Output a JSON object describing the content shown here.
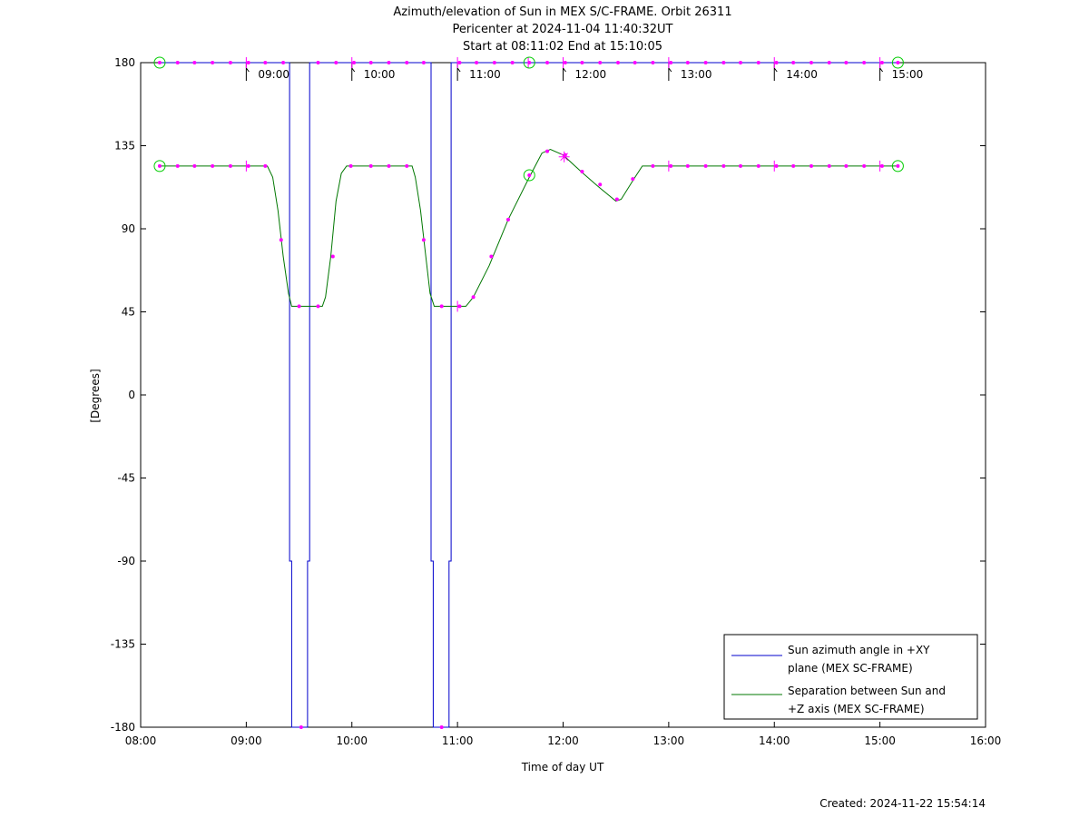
{
  "chart_data": {
    "type": "line",
    "title_lines": [
      "Azimuth/elevation of Sun in MEX S/C-FRAME.  Orbit 26311",
      "Pericenter at 2024-11-04 11:40:32UT",
      "Start at 08:11:02 End at 15:10:05"
    ],
    "xlabel": "Time of day UT",
    "ylabel": "[Degrees]",
    "xlim": [
      8.0,
      16.0
    ],
    "ylim": [
      -180,
      180
    ],
    "x_ticks": [
      {
        "v": 8,
        "label": "08:00"
      },
      {
        "v": 9,
        "label": "09:00"
      },
      {
        "v": 10,
        "label": "10:00"
      },
      {
        "v": 11,
        "label": "11:00"
      },
      {
        "v": 12,
        "label": "12:00"
      },
      {
        "v": 13,
        "label": "13:00"
      },
      {
        "v": 14,
        "label": "14:00"
      },
      {
        "v": 15,
        "label": "15:00"
      },
      {
        "v": 16,
        "label": "16:00"
      }
    ],
    "y_ticks": [
      {
        "v": 180,
        "label": "180"
      },
      {
        "v": 135,
        "label": "135"
      },
      {
        "v": 90,
        "label": "90"
      },
      {
        "v": 45,
        "label": "45"
      },
      {
        "v": 0,
        "label": "0"
      },
      {
        "v": -45,
        "label": "-45"
      },
      {
        "v": -90,
        "label": "-90"
      },
      {
        "v": -135,
        "label": "-135"
      },
      {
        "v": -180,
        "label": "-180"
      }
    ],
    "hour_markers": [
      {
        "v": 9,
        "label": "09:00"
      },
      {
        "v": 10,
        "label": "10:00"
      },
      {
        "v": 11,
        "label": "11:00"
      },
      {
        "v": 12,
        "label": "12:00"
      },
      {
        "v": 13,
        "label": "13:00"
      },
      {
        "v": 14,
        "label": "14:00"
      },
      {
        "v": 15,
        "label": "15:00"
      }
    ],
    "legend_position": "bottom-right",
    "series": [
      {
        "name": "Sun azimuth angle in +XY plane (MEX SC-FRAME)",
        "legend_lines": [
          "Sun azimuth angle in +XY",
          "plane (MEX SC-FRAME)"
        ],
        "color": "#0000cc",
        "points": [
          [
            8.18,
            180
          ],
          [
            9.41,
            180
          ],
          [
            9.41,
            -90
          ],
          [
            9.43,
            -90
          ],
          [
            9.43,
            -180
          ],
          [
            9.58,
            -180
          ],
          [
            9.58,
            -90
          ],
          [
            9.6,
            -90
          ],
          [
            9.6,
            180
          ],
          [
            10.75,
            180
          ],
          [
            10.75,
            -90
          ],
          [
            10.77,
            -90
          ],
          [
            10.77,
            -180
          ],
          [
            10.92,
            -180
          ],
          [
            10.92,
            -90
          ],
          [
            10.94,
            -90
          ],
          [
            10.94,
            180
          ],
          [
            15.17,
            180
          ]
        ]
      },
      {
        "name": "Separation between Sun and +Z axis (MEX SC-FRAME)",
        "legend_lines": [
          "Separation between Sun and",
          "+Z axis (MEX SC-FRAME)"
        ],
        "color": "#007700",
        "points": [
          [
            8.18,
            124
          ],
          [
            9.2,
            124
          ],
          [
            9.25,
            118
          ],
          [
            9.3,
            100
          ],
          [
            9.35,
            75
          ],
          [
            9.4,
            55
          ],
          [
            9.43,
            48
          ],
          [
            9.72,
            48
          ],
          [
            9.75,
            53
          ],
          [
            9.8,
            75
          ],
          [
            9.85,
            105
          ],
          [
            9.9,
            120
          ],
          [
            9.95,
            124
          ],
          [
            10.57,
            124
          ],
          [
            10.6,
            118
          ],
          [
            10.65,
            100
          ],
          [
            10.7,
            75
          ],
          [
            10.74,
            55
          ],
          [
            10.78,
            48
          ],
          [
            11.08,
            48
          ],
          [
            11.15,
            53
          ],
          [
            11.3,
            70
          ],
          [
            11.48,
            95
          ],
          [
            11.68,
            118
          ],
          [
            11.8,
            131
          ],
          [
            11.88,
            133
          ],
          [
            12.0,
            130
          ],
          [
            12.17,
            121
          ],
          [
            12.33,
            113
          ],
          [
            12.5,
            105
          ],
          [
            12.55,
            106
          ],
          [
            12.67,
            117
          ],
          [
            12.75,
            124
          ],
          [
            15.17,
            124
          ]
        ]
      }
    ],
    "marker_color": "#ff00ff",
    "marker_dots": [
      [
        8.18,
        180
      ],
      [
        8.35,
        180
      ],
      [
        8.51,
        180
      ],
      [
        8.68,
        180
      ],
      [
        8.85,
        180
      ],
      [
        9.02,
        180
      ],
      [
        9.18,
        180
      ],
      [
        9.35,
        180
      ],
      [
        9.52,
        -180
      ],
      [
        9.68,
        180
      ],
      [
        9.85,
        180
      ],
      [
        10.02,
        180
      ],
      [
        10.18,
        180
      ],
      [
        10.35,
        180
      ],
      [
        10.52,
        180
      ],
      [
        10.68,
        180
      ],
      [
        10.85,
        -180
      ],
      [
        11.02,
        180
      ],
      [
        11.18,
        180
      ],
      [
        11.35,
        180
      ],
      [
        11.52,
        180
      ],
      [
        11.68,
        180
      ],
      [
        11.85,
        180
      ],
      [
        12.02,
        180
      ],
      [
        12.18,
        180
      ],
      [
        12.35,
        180
      ],
      [
        12.52,
        180
      ],
      [
        12.68,
        180
      ],
      [
        12.85,
        180
      ],
      [
        13.02,
        180
      ],
      [
        13.18,
        180
      ],
      [
        13.35,
        180
      ],
      [
        13.52,
        180
      ],
      [
        13.68,
        180
      ],
      [
        13.85,
        180
      ],
      [
        14.02,
        180
      ],
      [
        14.18,
        180
      ],
      [
        14.35,
        180
      ],
      [
        14.52,
        180
      ],
      [
        14.68,
        180
      ],
      [
        14.85,
        180
      ],
      [
        15.02,
        180
      ],
      [
        15.17,
        180
      ],
      [
        8.18,
        124
      ],
      [
        8.35,
        124
      ],
      [
        8.51,
        124
      ],
      [
        8.68,
        124
      ],
      [
        8.85,
        124
      ],
      [
        9.02,
        124
      ],
      [
        9.18,
        124
      ],
      [
        9.33,
        84
      ],
      [
        9.5,
        48
      ],
      [
        9.68,
        48
      ],
      [
        9.82,
        75
      ],
      [
        9.99,
        124
      ],
      [
        10.18,
        124
      ],
      [
        10.35,
        124
      ],
      [
        10.52,
        124
      ],
      [
        10.68,
        84
      ],
      [
        10.85,
        48
      ],
      [
        11.02,
        48
      ],
      [
        11.15,
        53
      ],
      [
        11.32,
        75
      ],
      [
        11.48,
        95
      ],
      [
        11.68,
        119
      ],
      [
        11.85,
        132
      ],
      [
        12.02,
        130
      ],
      [
        12.18,
        121
      ],
      [
        12.35,
        114
      ],
      [
        12.51,
        106
      ],
      [
        12.66,
        117
      ],
      [
        12.85,
        124
      ],
      [
        13.02,
        124
      ],
      [
        13.18,
        124
      ],
      [
        13.35,
        124
      ],
      [
        13.52,
        124
      ],
      [
        13.68,
        124
      ],
      [
        13.85,
        124
      ],
      [
        14.02,
        124
      ],
      [
        14.18,
        124
      ],
      [
        14.35,
        124
      ],
      [
        14.52,
        124
      ],
      [
        14.68,
        124
      ],
      [
        14.85,
        124
      ],
      [
        15.02,
        124
      ],
      [
        15.17,
        124
      ]
    ],
    "hour_tick_marks": [
      [
        9,
        180
      ],
      [
        10,
        180
      ],
      [
        11,
        180
      ],
      [
        12,
        180
      ],
      [
        13,
        180
      ],
      [
        14,
        180
      ],
      [
        15,
        180
      ],
      [
        9,
        124
      ],
      [
        11,
        48
      ],
      [
        13,
        124
      ],
      [
        14,
        124
      ],
      [
        15,
        124
      ]
    ],
    "pericenter_marker": [
      11.67,
      180,
      12.01,
      129
    ],
    "pericenter_cross": [
      12.01,
      129
    ],
    "circle_color": "#00cc00",
    "circles": [
      [
        8.18,
        180
      ],
      [
        11.68,
        180
      ],
      [
        15.17,
        180
      ],
      [
        8.18,
        124
      ],
      [
        11.68,
        119
      ],
      [
        15.17,
        124
      ]
    ],
    "footer": "Created: 2024-11-22 15:54:14"
  }
}
